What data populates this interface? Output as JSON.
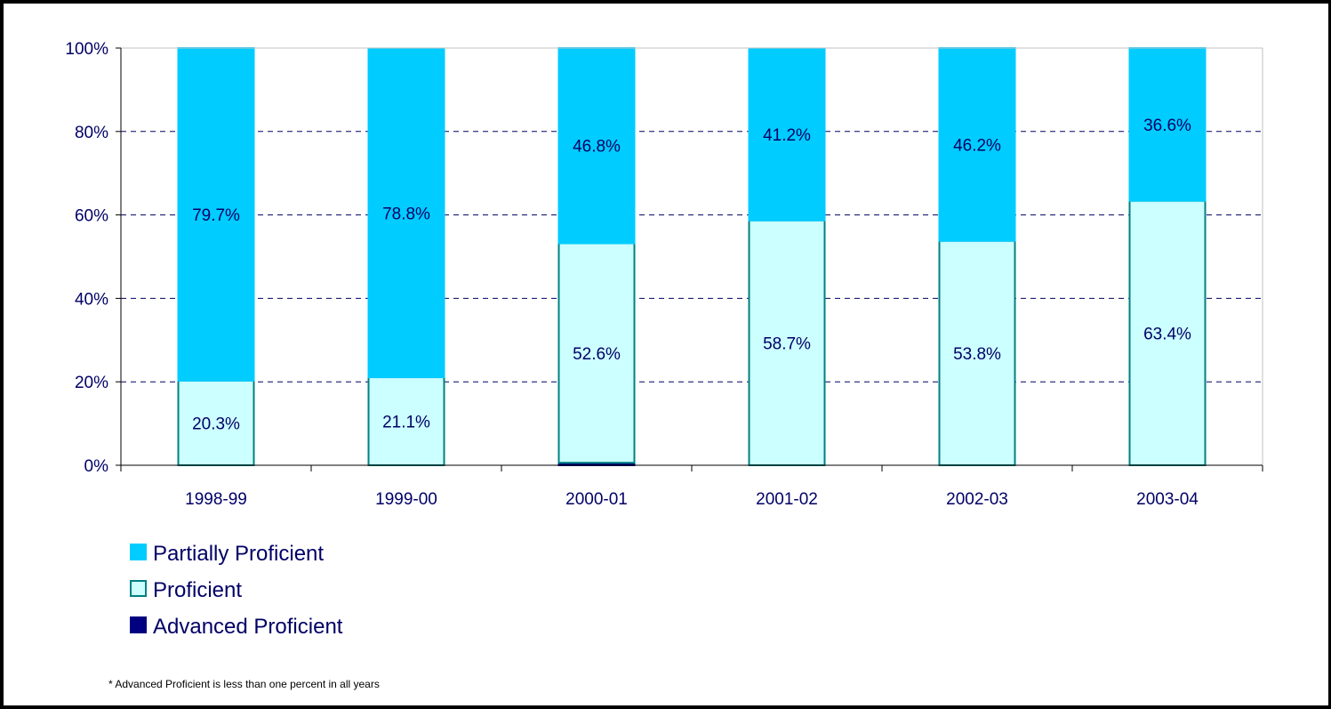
{
  "chart_data": {
    "type": "bar",
    "stacked": true,
    "categories": [
      "1998-99",
      "1999-00",
      "2000-01",
      "2001-02",
      "2002-03",
      "2003-04"
    ],
    "series": [
      {
        "name": "Advanced Proficient",
        "values": [
          0,
          0,
          0.6,
          0,
          0,
          0
        ],
        "labels": [
          "",
          "",
          "",
          "",
          "",
          ""
        ],
        "fill": "#000080",
        "stroke": "#000080"
      },
      {
        "name": "Proficient",
        "values": [
          20.3,
          21.1,
          52.6,
          58.7,
          53.8,
          63.4
        ],
        "labels": [
          "20.3%",
          "21.1%",
          "52.6%",
          "58.7%",
          "53.8%",
          "63.4%"
        ],
        "fill": "#CCFFFF",
        "stroke": "#008080"
      },
      {
        "name": "Partially Proficient",
        "values": [
          79.7,
          78.8,
          46.8,
          41.2,
          46.2,
          36.6
        ],
        "labels": [
          "79.7%",
          "78.8%",
          "46.8%",
          "41.2%",
          "46.2%",
          "36.6%"
        ],
        "fill": "#00CCFF",
        "stroke": "#00CCFF"
      }
    ],
    "legend_order": [
      "Partially Proficient",
      "Proficient",
      "Advanced Proficient"
    ],
    "legend_position": "bottom-left",
    "ylim": [
      0,
      100
    ],
    "yticks": [
      0,
      20,
      40,
      60,
      80,
      100
    ],
    "ytick_labels": [
      "0%",
      "20%",
      "40%",
      "60%",
      "80%",
      "100%"
    ],
    "grid": "horizontal-dashed",
    "title": "",
    "xlabel": "",
    "ylabel": ""
  },
  "footnote": "* Advanced Proficient is less than one percent in all years"
}
